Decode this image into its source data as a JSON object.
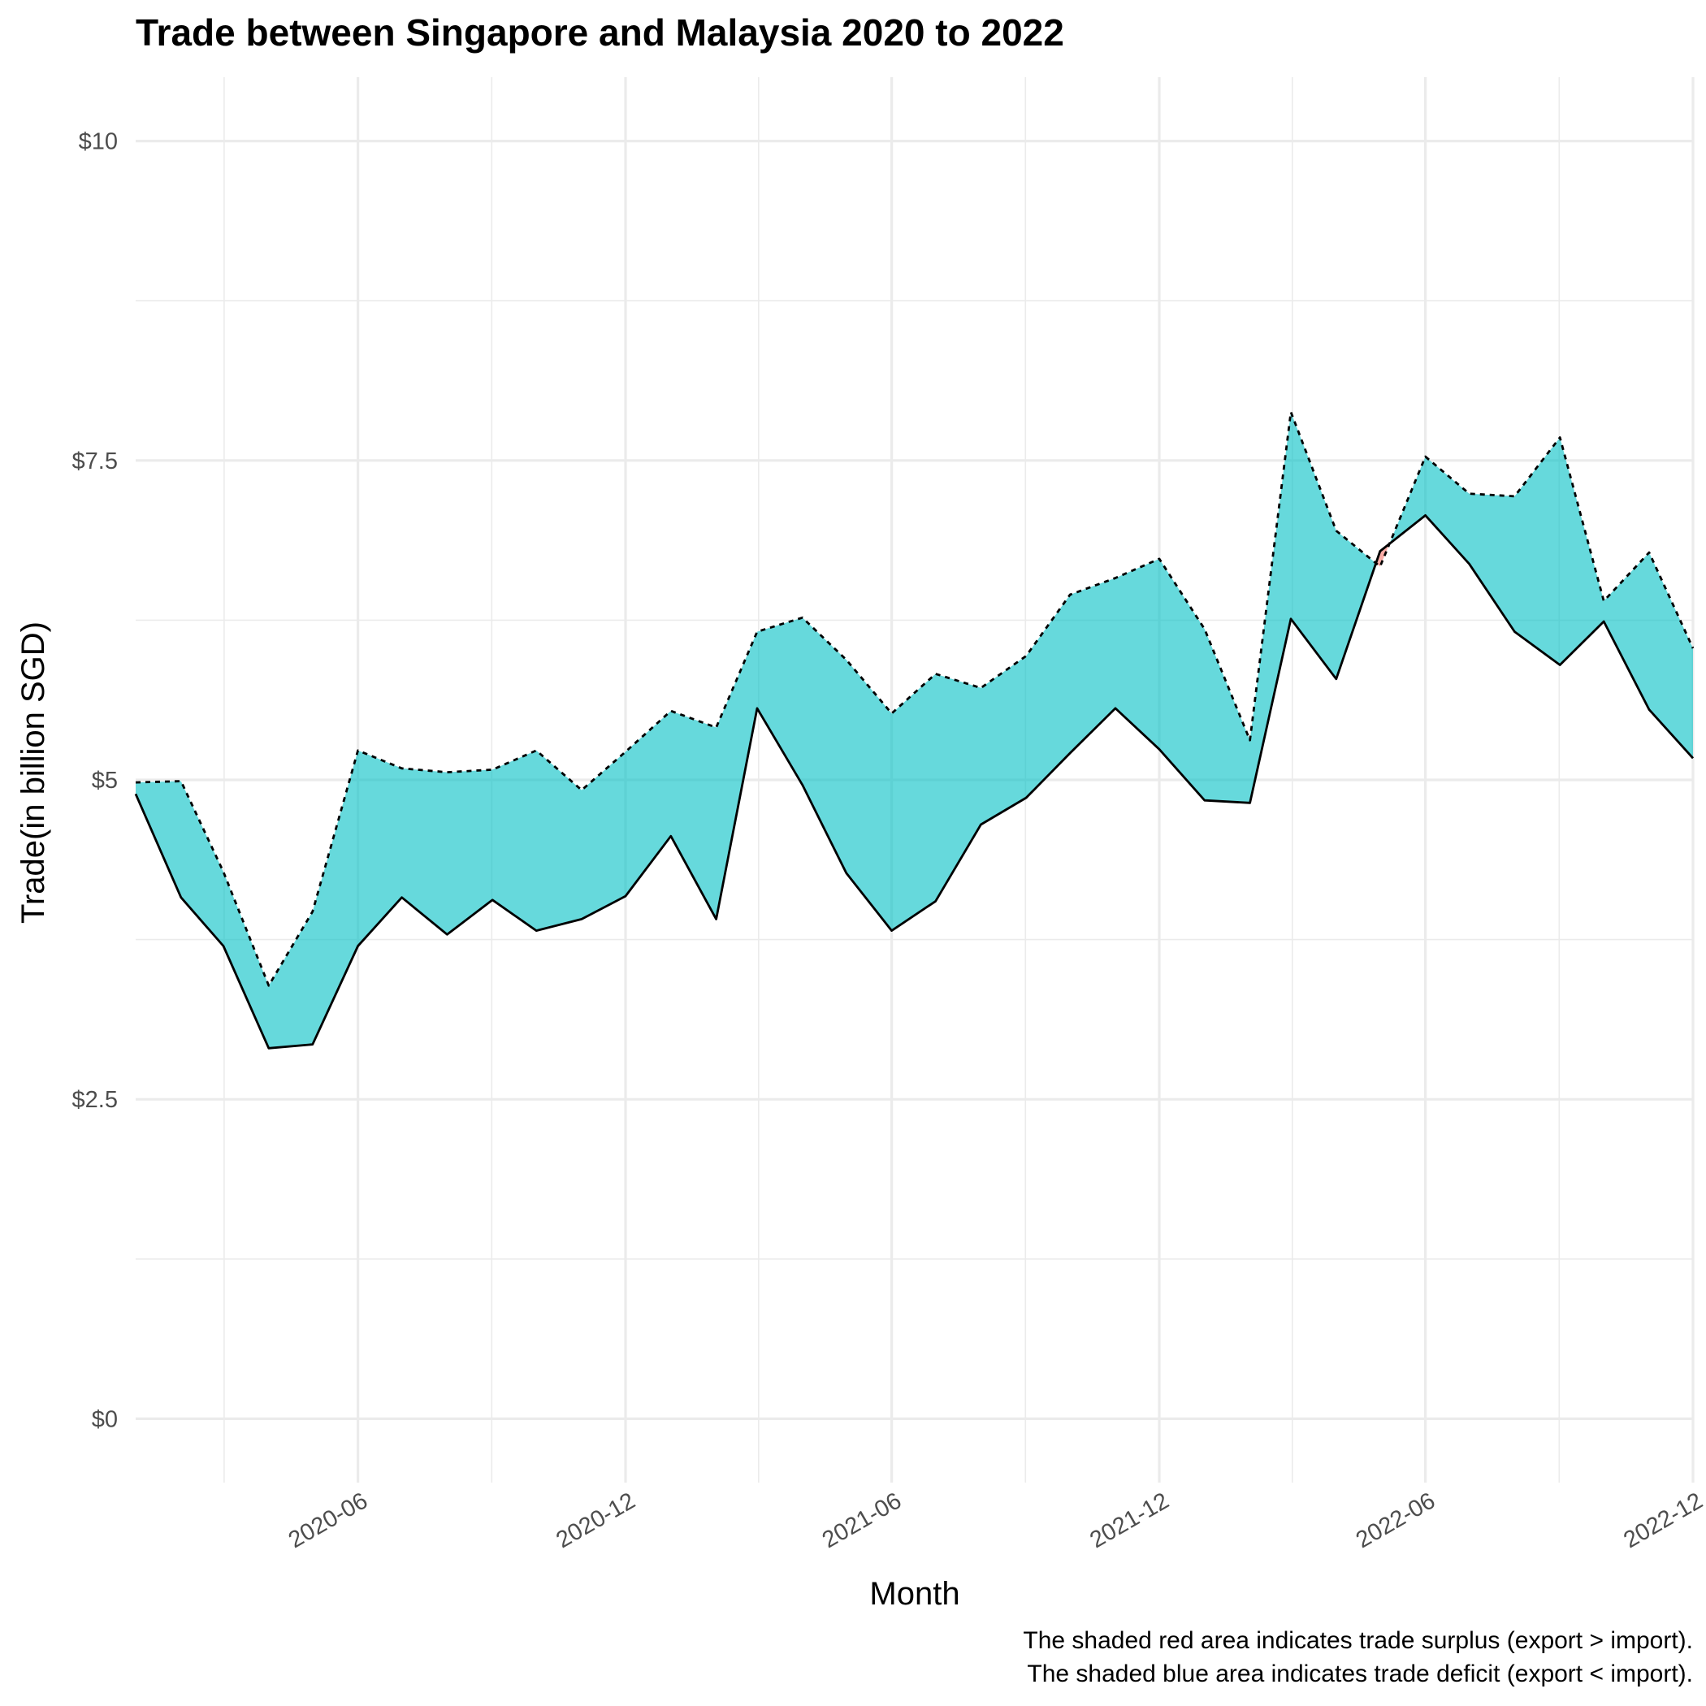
{
  "chart_data": {
    "type": "area",
    "title": "Trade between Singapore and Malaysia  2020 to 2022",
    "xlabel": "Month",
    "ylabel": "Trade(in billion SGD)",
    "ylim": [
      -0.5,
      10.5
    ],
    "y_ticks": [
      0,
      2.5,
      5,
      7.5,
      10
    ],
    "y_tick_labels": [
      "$0",
      "$2.5",
      "$5",
      "$7.5",
      "$10"
    ],
    "x_range": [
      "2020-01-01",
      "2022-12-01"
    ],
    "x_ticks": [
      "2020-06-01",
      "2020-12-01",
      "2021-06-01",
      "2021-12-01",
      "2022-06-01",
      "2022-12-01"
    ],
    "x_tick_labels": [
      "2020-06",
      "2020-12",
      "2021-06",
      "2021-12",
      "2022-06",
      "2022-12"
    ],
    "grid": true,
    "fill_colors": {
      "deficit": "#00BFC4",
      "surplus": "#F8766D"
    },
    "x": [
      "2020-01",
      "2020-02",
      "2020-03",
      "2020-04",
      "2020-05",
      "2020-06",
      "2020-07",
      "2020-08",
      "2020-09",
      "2020-10",
      "2020-11",
      "2020-12",
      "2021-01",
      "2021-02",
      "2021-03",
      "2021-04",
      "2021-05",
      "2021-06",
      "2021-07",
      "2021-08",
      "2021-09",
      "2021-10",
      "2021-11",
      "2021-12",
      "2022-01",
      "2022-02",
      "2022-03",
      "2022-04",
      "2022-05",
      "2022-06",
      "2022-07",
      "2022-08",
      "2022-09",
      "2022-10",
      "2022-11",
      "2022-12"
    ],
    "series": [
      {
        "line_style": "dashed",
        "values": [
          4.98,
          4.99,
          4.28,
          3.39,
          3.97,
          5.23,
          5.09,
          5.06,
          5.08,
          5.23,
          4.92,
          5.22,
          5.54,
          5.41,
          6.16,
          6.27,
          5.94,
          5.52,
          5.83,
          5.72,
          5.97,
          6.45,
          6.58,
          6.73,
          6.18,
          5.31,
          7.88,
          6.95,
          6.67,
          7.53,
          7.24,
          7.22,
          7.68,
          6.4,
          6.78,
          6.03
        ]
      },
      {
        "line_style": "solid",
        "values": [
          4.89,
          4.08,
          3.7,
          2.9,
          2.93,
          3.7,
          4.08,
          3.79,
          4.06,
          3.82,
          3.91,
          4.09,
          4.56,
          3.91,
          5.56,
          4.96,
          4.27,
          3.82,
          4.05,
          4.65,
          4.86,
          5.21,
          5.56,
          5.24,
          4.84,
          4.82,
          6.26,
          5.79,
          6.79,
          7.07,
          6.69,
          6.16,
          5.9,
          6.24,
          5.55,
          5.17
        ]
      }
    ],
    "caption": [
      "The shaded red area indicates trade surplus (export > import).",
      "The shaded blue area indicates trade deficit (export < import)."
    ]
  }
}
